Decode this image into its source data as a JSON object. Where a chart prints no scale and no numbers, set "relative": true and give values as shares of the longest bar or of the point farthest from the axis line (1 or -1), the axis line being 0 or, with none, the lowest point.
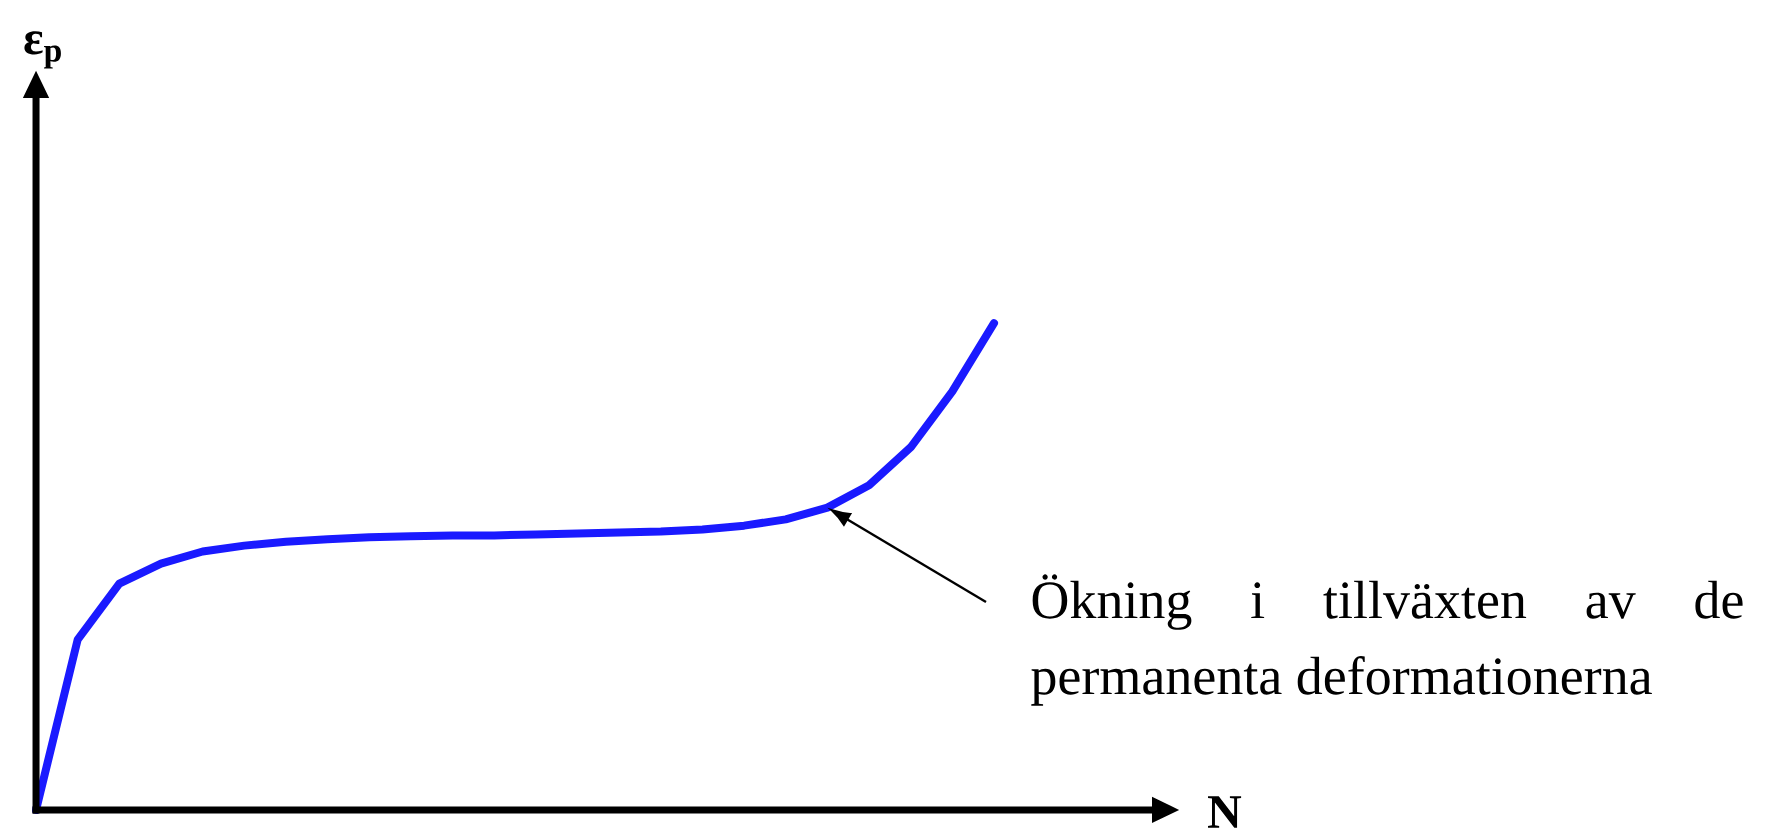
{
  "chart_data": {
    "type": "line",
    "relative": true,
    "xlabel": "N",
    "color": "#1a1aff",
    "categories": [
      null,
      null,
      null,
      null,
      null,
      null,
      null,
      null,
      null,
      null,
      null,
      null,
      null,
      null,
      null,
      null,
      null,
      null,
      null,
      null,
      null,
      null,
      null,
      null
    ],
    "values": [
      0,
      0.35,
      0.465,
      0.506,
      0.531,
      0.543,
      0.551,
      0.556,
      0.56,
      0.562,
      0.564,
      0.564,
      0.566,
      0.568,
      0.57,
      0.572,
      0.576,
      0.584,
      0.597,
      0.621,
      0.667,
      0.745,
      0.86,
      1
    ],
    "annotations": [
      "ε$_{p}$",
      "Ökning i tillväxten av de permanenta deformationerna"
    ]
  }
}
